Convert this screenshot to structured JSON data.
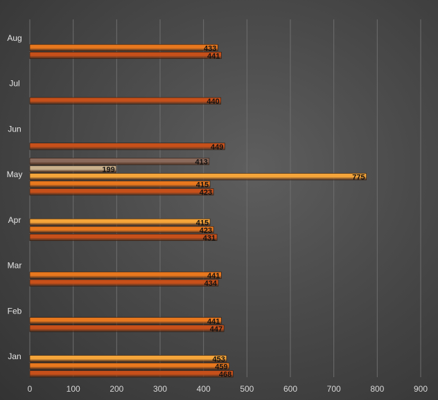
{
  "chart_data": {
    "type": "bar",
    "orientation": "horizontal",
    "title": "",
    "xlabel": "",
    "ylabel": "",
    "categories": [
      "Jan",
      "Feb",
      "Mar",
      "Apr",
      "May",
      "Jun",
      "Jul",
      "Aug"
    ],
    "xlim": [
      0,
      900
    ],
    "xticks": [
      0,
      100,
      200,
      300,
      400,
      500,
      600,
      700,
      800,
      900
    ],
    "grid": true,
    "legend": "none",
    "series": [
      {
        "color": "#f5a53a",
        "values": [
          453,
          null,
          null,
          415,
          775,
          null,
          null,
          null
        ]
      },
      {
        "color": "#e8781e",
        "values": [
          459,
          441,
          441,
          423,
          415,
          null,
          null,
          433
        ]
      },
      {
        "color": "#c7501a",
        "values": [
          468,
          447,
          434,
          431,
          423,
          449,
          440,
          441
        ]
      },
      {
        "color": "#c9b08c",
        "values": [
          null,
          null,
          null,
          null,
          199,
          null,
          null,
          null
        ]
      },
      {
        "color": "#8a6a5c",
        "values": [
          null,
          null,
          null,
          null,
          413,
          null,
          null,
          null
        ]
      }
    ]
  }
}
